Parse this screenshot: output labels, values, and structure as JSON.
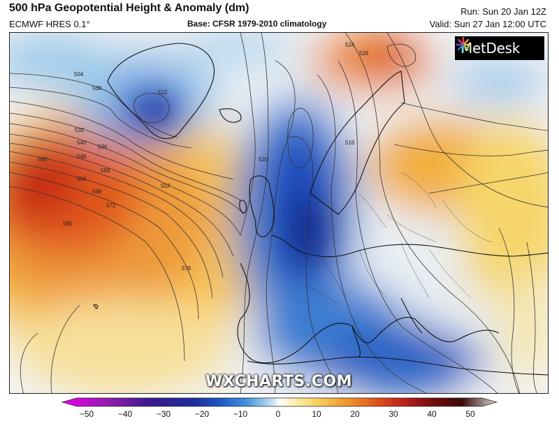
{
  "header": {
    "title": "500 hPa Geopotential Height & Anomaly (dm)",
    "model": "ECMWF HRES 0.1°",
    "base": "Base: CFSR 1979-2010 climatology",
    "run": "Run: Sun 20 Jan 12Z",
    "valid": "Valid: Sun 27 Jan 12:00 UTC"
  },
  "logo": {
    "text": "MetDesk",
    "icon": "metdesk-starburst-icon"
  },
  "watermark": "WXCHARTS.COM",
  "map": {
    "contour_labels": [
      "504",
      "508",
      "512",
      "516",
      "520",
      "524",
      "528",
      "532",
      "536",
      "540",
      "548",
      "552",
      "556",
      "560",
      "564",
      "568",
      "572",
      "576",
      "580"
    ],
    "low_centres": [
      "Greenland",
      "North Sea / Scandinavia"
    ],
    "high_centres": [
      "Central Atlantic",
      "Barents Sea / Russia"
    ]
  },
  "colorbar": {
    "ticks": [
      "−50",
      "−40",
      "−30",
      "−20",
      "−10",
      "0",
      "10",
      "20",
      "30",
      "40",
      "50"
    ],
    "min": -50,
    "max": 50,
    "colors": [
      "#ee00ee",
      "#9a1ab0",
      "#3a1a8c",
      "#1c2d9a",
      "#1f55c4",
      "#3f8ddc",
      "#8cc2ec",
      "#d7ebf6",
      "#ffffff",
      "#fbf0b8",
      "#f6d66a",
      "#f2ad3a",
      "#ec7e22",
      "#d9451d",
      "#b01a1a",
      "#6e0c0c",
      "#3a0a0a",
      "#d8d8d8"
    ]
  }
}
